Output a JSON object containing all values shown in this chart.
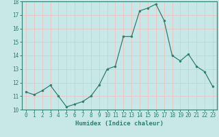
{
  "x": [
    0,
    1,
    2,
    3,
    4,
    5,
    6,
    7,
    8,
    9,
    10,
    11,
    12,
    13,
    14,
    15,
    16,
    17,
    18,
    19,
    20,
    21,
    22,
    23
  ],
  "y": [
    11.3,
    11.1,
    11.4,
    11.8,
    11.0,
    10.2,
    10.4,
    10.6,
    11.0,
    11.8,
    13.0,
    13.2,
    15.4,
    15.4,
    17.3,
    17.5,
    17.8,
    16.6,
    14.0,
    13.6,
    14.1,
    13.2,
    12.8,
    11.7
  ],
  "line_color": "#2e7d6e",
  "marker": "o",
  "markersize": 2.0,
  "linewidth": 0.9,
  "xlabel": "Humidex (Indice chaleur)",
  "xlabel_fontsize": 6.5,
  "ylim": [
    10,
    18
  ],
  "xlim": [
    -0.5,
    23.5
  ],
  "yticks": [
    10,
    11,
    12,
    13,
    14,
    15,
    16,
    17,
    18
  ],
  "xticks": [
    0,
    1,
    2,
    3,
    4,
    5,
    6,
    7,
    8,
    9,
    10,
    11,
    12,
    13,
    14,
    15,
    16,
    17,
    18,
    19,
    20,
    21,
    22,
    23
  ],
  "xtick_labels": [
    "0",
    "1",
    "2",
    "3",
    "4",
    "5",
    "6",
    "7",
    "8",
    "9",
    "10",
    "11",
    "12",
    "13",
    "14",
    "15",
    "16",
    "17",
    "18",
    "19",
    "20",
    "21",
    "22",
    "23"
  ],
  "background_color": "#c8e8e8",
  "grid_color": "#e8c8c8",
  "tick_fontsize": 5.5,
  "spine_color": "#2e7d6e"
}
